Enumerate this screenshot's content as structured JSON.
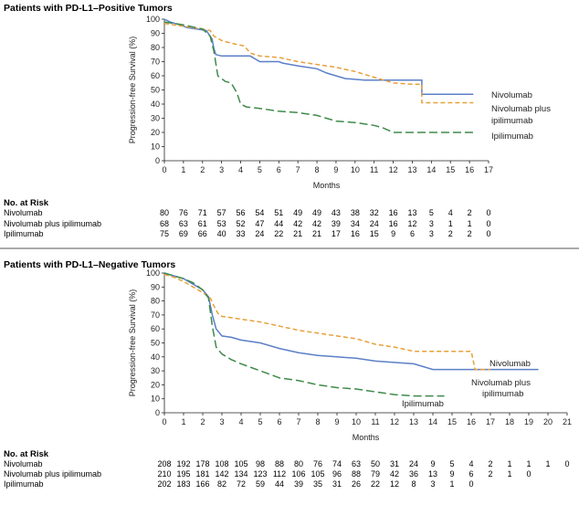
{
  "chart_data": [
    {
      "type": "line",
      "title": "Patients with PD-L1–Positive Tumors",
      "xlabel": "Months",
      "ylabel": "Progression-free Survival (%)",
      "xlim": [
        0,
        17
      ],
      "ylim": [
        0,
        100
      ],
      "x_ticks": [
        0,
        1,
        2,
        3,
        4,
        5,
        6,
        7,
        8,
        9,
        10,
        11,
        12,
        13,
        14,
        15,
        16,
        17
      ],
      "y_ticks": [
        0,
        10,
        20,
        30,
        40,
        50,
        60,
        70,
        80,
        90,
        100
      ],
      "legend": "end-of-line labels",
      "series": [
        {
          "name": "Nivolumab",
          "color": "#5b7fc7",
          "dash": "solid",
          "label_lines": [
            "Nivolumab"
          ],
          "points": [
            [
              0,
              100
            ],
            [
              0.3,
              98
            ],
            [
              0.8,
              96
            ],
            [
              1.2,
              94
            ],
            [
              2.2,
              92
            ],
            [
              2.5,
              86
            ],
            [
              2.6,
              79
            ],
            [
              2.7,
              75
            ],
            [
              3,
              74
            ],
            [
              4.5,
              74
            ],
            [
              5,
              70
            ],
            [
              6,
              70
            ],
            [
              6.2,
              69
            ],
            [
              7,
              67
            ],
            [
              8,
              65
            ],
            [
              8.5,
              62
            ],
            [
              9,
              60
            ],
            [
              9.5,
              58
            ],
            [
              10.5,
              57
            ],
            [
              11,
              57
            ],
            [
              12.5,
              57
            ],
            [
              13.5,
              57
            ],
            [
              13.5,
              47
            ],
            [
              16.2,
              47
            ]
          ]
        },
        {
          "name": "Nivolumab plus ipilimumab",
          "color": "#e8a03a",
          "dash": "dash",
          "label_lines": [
            "Nivolumab plus",
            "ipilimumab"
          ],
          "points": [
            [
              0,
              97
            ],
            [
              1,
              95
            ],
            [
              2,
              93
            ],
            [
              2.4,
              92
            ],
            [
              2.6,
              88
            ],
            [
              3,
              85
            ],
            [
              3.5,
              83
            ],
            [
              4.2,
              81
            ],
            [
              4.5,
              76
            ],
            [
              5,
              74
            ],
            [
              6,
              73
            ],
            [
              7,
              70
            ],
            [
              8,
              68
            ],
            [
              9,
              66
            ],
            [
              10,
              63
            ],
            [
              10.5,
              61
            ],
            [
              11,
              59
            ],
            [
              12,
              55
            ],
            [
              13,
              54
            ],
            [
              13.5,
              54
            ],
            [
              13.5,
              41
            ],
            [
              16.2,
              41
            ]
          ]
        },
        {
          "name": "Ipilimumab",
          "color": "#3e8a4a",
          "dash": "longdash",
          "label_lines": [
            "Ipilimumab"
          ],
          "points": [
            [
              0,
              98
            ],
            [
              1,
              96
            ],
            [
              2,
              93
            ],
            [
              2.4,
              88
            ],
            [
              2.6,
              77
            ],
            [
              2.8,
              60
            ],
            [
              3.2,
              56
            ],
            [
              3.5,
              55
            ],
            [
              3.8,
              48
            ],
            [
              4,
              40
            ],
            [
              4.3,
              38
            ],
            [
              5,
              37
            ],
            [
              6,
              35
            ],
            [
              7,
              34
            ],
            [
              8,
              32
            ],
            [
              8.5,
              30
            ],
            [
              9,
              28
            ],
            [
              10,
              27
            ],
            [
              11,
              25
            ],
            [
              11.5,
              23
            ],
            [
              12,
              20
            ],
            [
              13.5,
              20
            ],
            [
              16.2,
              20
            ]
          ]
        }
      ],
      "risk": {
        "title": "No. at Risk",
        "months": [
          0,
          1,
          2,
          3,
          4,
          5,
          6,
          7,
          8,
          9,
          10,
          11,
          12,
          13,
          14,
          15,
          16,
          17
        ],
        "rows": [
          {
            "label": "Nivolumab",
            "values": [
              "80",
              "76",
              "71",
              "57",
              "56",
              "54",
              "51",
              "49",
              "49",
              "43",
              "38",
              "32",
              "16",
              "13",
              "5",
              "4",
              "2",
              "0"
            ]
          },
          {
            "label": "Nivolumab plus ipilimumab",
            "values": [
              "68",
              "63",
              "61",
              "53",
              "52",
              "47",
              "44",
              "42",
              "42",
              "39",
              "34",
              "24",
              "16",
              "12",
              "3",
              "1",
              "1",
              "0"
            ]
          },
          {
            "label": "Ipilimumab",
            "values": [
              "75",
              "69",
              "66",
              "40",
              "33",
              "24",
              "22",
              "21",
              "21",
              "17",
              "16",
              "15",
              "9",
              "6",
              "3",
              "2",
              "2",
              "0"
            ]
          }
        ]
      }
    },
    {
      "type": "line",
      "title": "Patients with PD-L1–Negative Tumors",
      "xlabel": "Months",
      "ylabel": "Progression-free Survival (%)",
      "xlim": [
        0,
        21
      ],
      "ylim": [
        0,
        100
      ],
      "x_ticks": [
        0,
        1,
        2,
        3,
        4,
        5,
        6,
        7,
        8,
        9,
        10,
        11,
        12,
        13,
        14,
        15,
        16,
        17,
        18,
        19,
        20,
        21
      ],
      "y_ticks": [
        0,
        10,
        20,
        30,
        40,
        50,
        60,
        70,
        80,
        90,
        100
      ],
      "legend": "end-of-line labels",
      "series": [
        {
          "name": "Nivolumab",
          "color": "#5b7fc7",
          "dash": "solid",
          "label_lines": [
            "Nivolumab"
          ],
          "points": [
            [
              0,
              100
            ],
            [
              0.5,
              98
            ],
            [
              1,
              96
            ],
            [
              1.5,
              92
            ],
            [
              2,
              88
            ],
            [
              2.3,
              83
            ],
            [
              2.5,
              70
            ],
            [
              2.7,
              60
            ],
            [
              3,
              55
            ],
            [
              3.5,
              54
            ],
            [
              4,
              52
            ],
            [
              5,
              50
            ],
            [
              6,
              46
            ],
            [
              7,
              43
            ],
            [
              8,
              41
            ],
            [
              9,
              40
            ],
            [
              10,
              39
            ],
            [
              11,
              37
            ],
            [
              12,
              36
            ],
            [
              13,
              35
            ],
            [
              14,
              31
            ],
            [
              16,
              31
            ],
            [
              18,
              31
            ],
            [
              19.5,
              31
            ]
          ]
        },
        {
          "name": "Nivolumab plus ipilimumab",
          "color": "#e8a03a",
          "dash": "dash",
          "label_lines": [
            "Nivolumab plus",
            "ipilimumab"
          ],
          "points": [
            [
              0,
              99
            ],
            [
              0.5,
              97
            ],
            [
              1,
              94
            ],
            [
              1.5,
              90
            ],
            [
              2,
              86
            ],
            [
              2.4,
              82
            ],
            [
              2.6,
              76
            ],
            [
              2.8,
              71
            ],
            [
              3,
              69
            ],
            [
              4,
              67
            ],
            [
              5,
              65
            ],
            [
              6,
              62
            ],
            [
              7,
              59
            ],
            [
              8,
              57
            ],
            [
              9,
              55
            ],
            [
              10,
              53
            ],
            [
              11,
              49
            ],
            [
              12,
              47
            ],
            [
              13,
              44
            ],
            [
              15,
              44
            ],
            [
              16,
              44
            ],
            [
              16.2,
              31
            ],
            [
              17,
              31
            ]
          ]
        },
        {
          "name": "Ipilimumab",
          "color": "#3e8a4a",
          "dash": "longdash",
          "label_lines": [
            "Ipilimumab"
          ],
          "points": [
            [
              0,
              100
            ],
            [
              0.5,
              98
            ],
            [
              1,
              96
            ],
            [
              1.5,
              93
            ],
            [
              2,
              88
            ],
            [
              2.3,
              82
            ],
            [
              2.5,
              62
            ],
            [
              2.7,
              47
            ],
            [
              3,
              42
            ],
            [
              3.5,
              38
            ],
            [
              4,
              35
            ],
            [
              5,
              30
            ],
            [
              6,
              25
            ],
            [
              7,
              23
            ],
            [
              8,
              20
            ],
            [
              9,
              18
            ],
            [
              10,
              17
            ],
            [
              11,
              15
            ],
            [
              12,
              13
            ],
            [
              13,
              12
            ],
            [
              14,
              12
            ],
            [
              14.6,
              12
            ]
          ]
        }
      ],
      "risk": {
        "title": "No. at Risk",
        "months": [
          0,
          1,
          2,
          3,
          4,
          5,
          6,
          7,
          8,
          9,
          10,
          11,
          12,
          13,
          14,
          15,
          16,
          17,
          18,
          19,
          20,
          21
        ],
        "rows": [
          {
            "label": "Nivolumab",
            "values": [
              "208",
              "192",
              "178",
              "108",
              "105",
              "98",
              "88",
              "80",
              "76",
              "74",
              "63",
              "50",
              "31",
              "24",
              "9",
              "5",
              "4",
              "2",
              "1",
              "1",
              "1",
              "0"
            ]
          },
          {
            "label": "Nivolumab plus ipilimumab",
            "values": [
              "210",
              "195",
              "181",
              "142",
              "134",
              "123",
              "112",
              "106",
              "105",
              "96",
              "88",
              "79",
              "42",
              "36",
              "13",
              "9",
              "6",
              "2",
              "1",
              "0",
              "",
              ""
            ]
          },
          {
            "label": "Ipilimumab",
            "values": [
              "202",
              "183",
              "166",
              "82",
              "72",
              "59",
              "44",
              "39",
              "35",
              "31",
              "26",
              "22",
              "12",
              "8",
              "3",
              "1",
              "0",
              "",
              "",
              "",
              "",
              ""
            ]
          }
        ]
      }
    }
  ]
}
